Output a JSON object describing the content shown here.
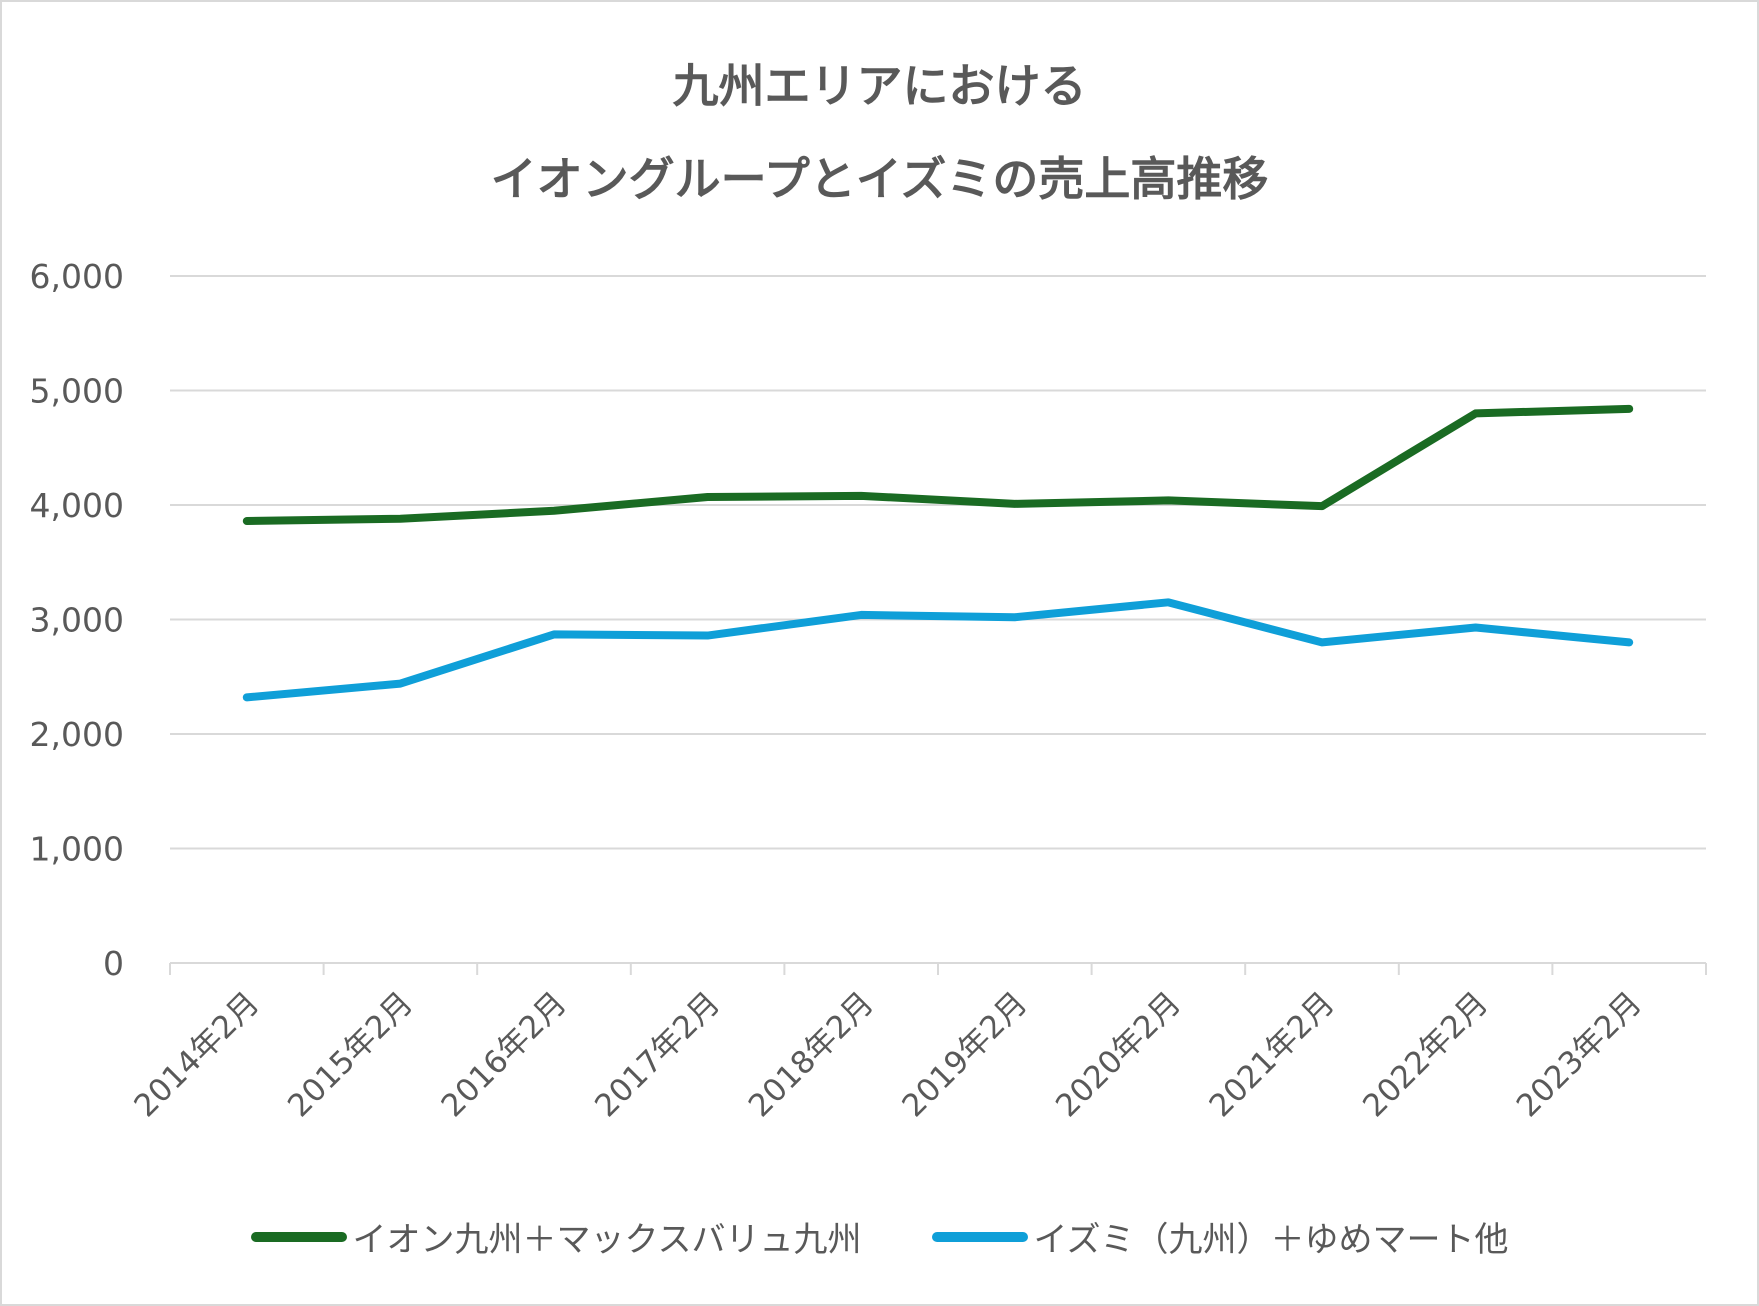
{
  "chart_data": {
    "type": "line",
    "title": [
      "九州エリアにおける",
      "イオングループとイズミの売上高推移"
    ],
    "xlabel": "",
    "ylabel": "",
    "categories": [
      "2014年2月",
      "2015年2月",
      "2016年2月",
      "2017年2月",
      "2018年2月",
      "2019年2月",
      "2020年2月",
      "2021年2月",
      "2022年2月",
      "2023年2月"
    ],
    "ylim": [
      0,
      6000
    ],
    "yticks": [
      0,
      1000,
      2000,
      3000,
      4000,
      5000,
      6000
    ],
    "ytick_labels": [
      "0",
      "1,000",
      "2,000",
      "3,000",
      "4,000",
      "5,000",
      "6,000"
    ],
    "grid": true,
    "legend_position": "bottom",
    "series": [
      {
        "name": "イオン九州＋マックスバリュ九州",
        "color": "#1a6b23",
        "values": [
          3860,
          3880,
          3950,
          4070,
          4080,
          4010,
          4040,
          3990,
          4800,
          4840
        ]
      },
      {
        "name": "イズミ（九州）＋ゆめマート他",
        "color": "#0f9fd8",
        "values": [
          2320,
          2440,
          2870,
          2860,
          3040,
          3020,
          3150,
          2800,
          2930,
          2800
        ]
      }
    ]
  }
}
